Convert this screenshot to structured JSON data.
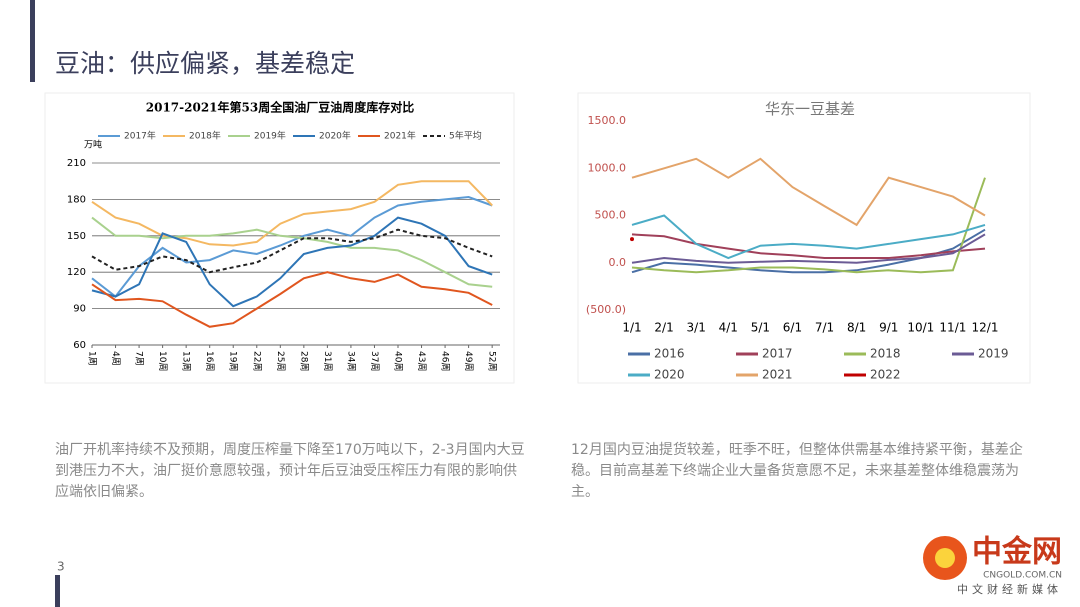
{
  "header": {
    "title": "豆油：供应偏紧，基差稳定"
  },
  "chart_data": [
    {
      "type": "line",
      "title": "2017-2021年第53周全国油厂豆油周度库存对比",
      "y_label": "万吨",
      "x": [
        1,
        4,
        7,
        10,
        13,
        16,
        19,
        22,
        25,
        28,
        31,
        34,
        37,
        40,
        43,
        46,
        49,
        52
      ],
      "xlim": [
        1,
        53
      ],
      "xticks": [
        {
          "value": 1,
          "label": "1周"
        },
        {
          "value": 4,
          "label": "4周"
        },
        {
          "value": 7,
          "label": "7周"
        },
        {
          "value": 10,
          "label": "10周"
        },
        {
          "value": 13,
          "label": "13周"
        },
        {
          "value": 16,
          "label": "16周"
        },
        {
          "value": 19,
          "label": "19周"
        },
        {
          "value": 22,
          "label": "22周"
        },
        {
          "value": 25,
          "label": "25周"
        },
        {
          "value": 28,
          "label": "28周"
        },
        {
          "value": 31,
          "label": "31周"
        },
        {
          "value": 34,
          "label": "34周"
        },
        {
          "value": 37,
          "label": "37周"
        },
        {
          "value": 40,
          "label": "40周"
        },
        {
          "value": 43,
          "label": "43周"
        },
        {
          "value": 46,
          "label": "46周"
        },
        {
          "value": 49,
          "label": "49周"
        },
        {
          "value": 52,
          "label": "52周"
        }
      ],
      "ylim": [
        60,
        210
      ],
      "yticks": [
        60,
        90,
        120,
        150,
        180,
        210
      ],
      "grid": true,
      "legend": "top",
      "series": [
        {
          "name": "2017年",
          "color": "#5b9bd5",
          "values": [
            115,
            100,
            125,
            140,
            128,
            130,
            138,
            135,
            142,
            150,
            155,
            150,
            165,
            175,
            178,
            180,
            182,
            175
          ]
        },
        {
          "name": "2018年",
          "color": "#f4b862",
          "values": [
            178,
            165,
            160,
            150,
            148,
            143,
            142,
            145,
            160,
            168,
            170,
            172,
            178,
            192,
            195,
            195,
            195,
            175
          ]
        },
        {
          "name": "2019年",
          "color": "#a9d18e",
          "values": [
            165,
            150,
            150,
            148,
            150,
            150,
            152,
            155,
            150,
            148,
            145,
            140,
            140,
            138,
            130,
            120,
            110,
            108
          ]
        },
        {
          "name": "2020年",
          "color": "#2e75b6",
          "values": [
            105,
            100,
            110,
            152,
            145,
            110,
            92,
            100,
            115,
            135,
            140,
            142,
            150,
            165,
            160,
            150,
            125,
            118
          ]
        },
        {
          "name": "2021年",
          "color": "#e0561f",
          "values": [
            110,
            97,
            98,
            96,
            85,
            75,
            78,
            90,
            102,
            115,
            120,
            115,
            112,
            118,
            108,
            106,
            103,
            93
          ]
        },
        {
          "name": "5年平均",
          "color": "#222222",
          "style": "dashed",
          "values": [
            133,
            122,
            125,
            133,
            130,
            120,
            124,
            128,
            138,
            148,
            148,
            145,
            148,
            155,
            150,
            148,
            140,
            133
          ]
        }
      ]
    },
    {
      "type": "line",
      "title": "华东一豆基差",
      "categories": [
        "1/1",
        "2/1",
        "3/1",
        "4/1",
        "5/1",
        "6/1",
        "7/1",
        "8/1",
        "9/1",
        "10/1",
        "11/1",
        "12/1"
      ],
      "ylim": [
        -500,
        1500
      ],
      "yticks": [
        {
          "value": 1500,
          "label": "1500.0"
        },
        {
          "value": 1000,
          "label": "1000.0"
        },
        {
          "value": 500,
          "label": "500.0"
        },
        {
          "value": 0,
          "label": "0.0"
        },
        {
          "value": -500,
          "label": "(500.0)"
        }
      ],
      "grid": false,
      "legend": "bottom",
      "series": [
        {
          "name": "2016",
          "color": "#4a6fa5",
          "values": [
            -100,
            0,
            -20,
            -50,
            -80,
            -100,
            -100,
            -80,
            -20,
            50,
            150,
            350
          ]
        },
        {
          "name": "2017",
          "color": "#a0405a",
          "values": [
            300,
            280,
            200,
            150,
            100,
            80,
            50,
            50,
            50,
            80,
            120,
            150
          ]
        },
        {
          "name": "2018",
          "color": "#9bbb59",
          "values": [
            -50,
            -80,
            -100,
            -80,
            -50,
            -50,
            -70,
            -100,
            -80,
            -100,
            -80,
            900
          ]
        },
        {
          "name": "2019",
          "color": "#6b5b95",
          "values": [
            0,
            50,
            20,
            0,
            10,
            20,
            10,
            0,
            30,
            50,
            100,
            300
          ]
        },
        {
          "name": "2020",
          "color": "#4bacc6",
          "values": [
            400,
            500,
            200,
            50,
            180,
            200,
            180,
            150,
            200,
            250,
            300,
            400
          ]
        },
        {
          "name": "2021",
          "color": "#e3a46a",
          "values": [
            900,
            1000,
            1100,
            900,
            1100,
            800,
            600,
            400,
            900,
            800,
            700,
            500
          ]
        },
        {
          "name": "2022",
          "color": "#c00000",
          "values": [
            250,
            null,
            null,
            null,
            null,
            null,
            null,
            null,
            null,
            null,
            null,
            null
          ]
        }
      ]
    }
  ],
  "paragraphs": [
    "油厂开机率持续不及预期，周度压榨量下降至170万吨以下，2-3月国内大豆到港压力不大，油厂挺价意愿较强，预计年后豆油受压榨压力有限的影响供应端依旧偏紧。",
    "12月国内豆油提货较差，旺季不旺，但整体供需基本维持紧平衡，基差企稳。目前高基差下终端企业大量备货意愿不足，未来基差整体维稳震荡为主。"
  ],
  "page_number": "3",
  "logo": {
    "name": "中金网",
    "url": "CNGOLD.COM.CN",
    "slogan": "中文财经新媒体"
  }
}
